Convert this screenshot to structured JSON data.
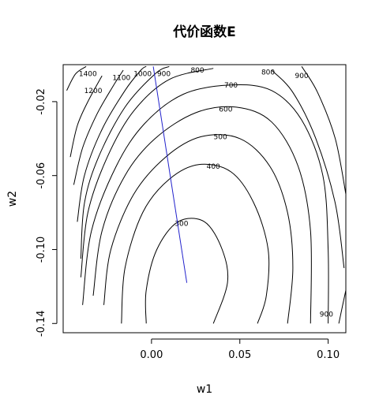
{
  "chart_data": {
    "type": "contour",
    "title": "代价函数E",
    "xlabel": "w1",
    "ylabel": "w2",
    "xlim": [
      -0.05,
      0.11
    ],
    "ylim": [
      -0.145,
      0.0
    ],
    "xticks": [
      {
        "value": 0.0,
        "label": "0.00"
      },
      {
        "value": 0.05,
        "label": "0.05"
      },
      {
        "value": 0.1,
        "label": "0.10"
      }
    ],
    "yticks": [
      {
        "value": -0.02,
        "label": "-0.02"
      },
      {
        "value": -0.06,
        "label": "-0.06"
      },
      {
        "value": -0.1,
        "label": "-0.10"
      },
      {
        "value": -0.14,
        "label": "-0.14"
      }
    ],
    "contours": [
      {
        "level": 300,
        "label": "300",
        "points": [
          [
            -0.003,
            -0.14
          ],
          [
            -0.003,
            -0.122
          ],
          [
            0.003,
            -0.1
          ],
          [
            0.015,
            -0.085
          ],
          [
            0.03,
            -0.085
          ],
          [
            0.04,
            -0.1
          ],
          [
            0.043,
            -0.118
          ],
          [
            0.035,
            -0.14
          ]
        ],
        "label_pos": [
          0.017,
          -0.086
        ]
      },
      {
        "level": 400,
        "label": "400",
        "points": [
          [
            -0.017,
            -0.14
          ],
          [
            -0.015,
            -0.11
          ],
          [
            -0.005,
            -0.08
          ],
          [
            0.01,
            -0.062
          ],
          [
            0.027,
            -0.054
          ],
          [
            0.045,
            -0.058
          ],
          [
            0.058,
            -0.075
          ],
          [
            0.066,
            -0.1
          ],
          [
            0.065,
            -0.125
          ],
          [
            0.06,
            -0.14
          ]
        ],
        "label_pos": [
          0.035,
          -0.055
        ]
      },
      {
        "level": 500,
        "label": "500",
        "points": [
          [
            -0.027,
            -0.13
          ],
          [
            -0.023,
            -0.1
          ],
          [
            -0.01,
            -0.07
          ],
          [
            0.008,
            -0.05
          ],
          [
            0.028,
            -0.039
          ],
          [
            0.05,
            -0.04
          ],
          [
            0.067,
            -0.055
          ],
          [
            0.077,
            -0.08
          ],
          [
            0.08,
            -0.11
          ],
          [
            0.077,
            -0.14
          ]
        ],
        "label_pos": [
          0.039,
          -0.039
        ]
      },
      {
        "level": 600,
        "label": "600",
        "points": [
          [
            -0.033,
            -0.125
          ],
          [
            -0.028,
            -0.09
          ],
          [
            -0.015,
            -0.06
          ],
          [
            0.002,
            -0.04
          ],
          [
            0.025,
            -0.026
          ],
          [
            0.048,
            -0.023
          ],
          [
            0.068,
            -0.031
          ],
          [
            0.083,
            -0.055
          ],
          [
            0.09,
            -0.09
          ],
          [
            0.09,
            -0.14
          ]
        ],
        "label_pos": [
          0.042,
          -0.024
        ]
      },
      {
        "level": 700,
        "label": "700",
        "points": [
          [
            -0.039,
            -0.13
          ],
          [
            -0.034,
            -0.09
          ],
          [
            -0.02,
            -0.055
          ],
          [
            -0.004,
            -0.032
          ],
          [
            0.018,
            -0.016
          ],
          [
            0.045,
            -0.011
          ],
          [
            0.068,
            -0.014
          ],
          [
            0.085,
            -0.03
          ],
          [
            0.097,
            -0.06
          ],
          [
            0.1,
            -0.1
          ],
          [
            0.1,
            -0.14
          ]
        ],
        "label_pos": [
          0.045,
          -0.011
        ]
      },
      {
        "level": 800,
        "label": "800",
        "points": [
          [
            -0.04,
            -0.115
          ],
          [
            -0.036,
            -0.08
          ],
          [
            -0.025,
            -0.05
          ],
          [
            -0.01,
            -0.025
          ],
          [
            0.01,
            -0.008
          ],
          [
            0.035,
            -0.002
          ]
        ],
        "label_pos": [
          0.026,
          -0.003
        ]
      },
      {
        "level": 800,
        "label": "800",
        "points": [
          [
            0.068,
            -0.003
          ],
          [
            0.08,
            -0.015
          ],
          [
            0.093,
            -0.04
          ],
          [
            0.104,
            -0.075
          ],
          [
            0.109,
            -0.11
          ]
        ],
        "label_pos": [
          0.066,
          -0.004
        ]
      },
      {
        "level": 900,
        "label": "900",
        "points": [
          [
            -0.04,
            -0.105
          ],
          [
            -0.038,
            -0.075
          ],
          [
            -0.03,
            -0.05
          ],
          [
            -0.015,
            -0.023
          ],
          [
            0.002,
            -0.005
          ],
          [
            0.01,
            -0.001
          ]
        ],
        "label_pos": [
          0.007,
          -0.005
        ]
      },
      {
        "level": 900,
        "label": "900",
        "points": [
          [
            0.085,
            -0.001
          ],
          [
            0.094,
            -0.015
          ],
          [
            0.104,
            -0.04
          ],
          [
            0.11,
            -0.07
          ]
        ],
        "label_pos": [
          0.085,
          -0.006
        ]
      },
      {
        "level": 900,
        "label": "900",
        "points": [
          [
            0.11,
            -0.122
          ],
          [
            0.106,
            -0.14
          ]
        ],
        "label_pos": [
          0.099,
          -0.135
        ]
      },
      {
        "level": 1000,
        "label": "1000",
        "points": [
          [
            -0.042,
            -0.085
          ],
          [
            -0.038,
            -0.06
          ],
          [
            -0.028,
            -0.035
          ],
          [
            -0.015,
            -0.014
          ],
          [
            -0.006,
            -0.003
          ],
          [
            -0.003,
            -0.001
          ]
        ],
        "label_pos": [
          -0.005,
          -0.005
        ]
      },
      {
        "level": 1100,
        "label": "1100",
        "points": [
          [
            -0.044,
            -0.065
          ],
          [
            -0.039,
            -0.045
          ],
          [
            -0.031,
            -0.027
          ],
          [
            -0.022,
            -0.012
          ],
          [
            -0.016,
            -0.003
          ]
        ],
        "label_pos": [
          -0.017,
          -0.007
        ]
      },
      {
        "level": 1200,
        "label": "1200",
        "points": [
          [
            -0.046,
            -0.05
          ],
          [
            -0.042,
            -0.033
          ],
          [
            -0.036,
            -0.02
          ],
          [
            -0.028,
            -0.006
          ]
        ],
        "label_pos": [
          -0.033,
          -0.014
        ]
      },
      {
        "level": 1400,
        "label": "1400",
        "points": [
          [
            -0.048,
            -0.014
          ],
          [
            -0.043,
            -0.005
          ],
          [
            -0.037,
            -0.001
          ]
        ],
        "label_pos": [
          -0.036,
          -0.005
        ]
      }
    ],
    "descent_path": {
      "points": [
        [
          0.001,
          -0.001
        ],
        [
          0.02,
          -0.118
        ]
      ]
    }
  }
}
